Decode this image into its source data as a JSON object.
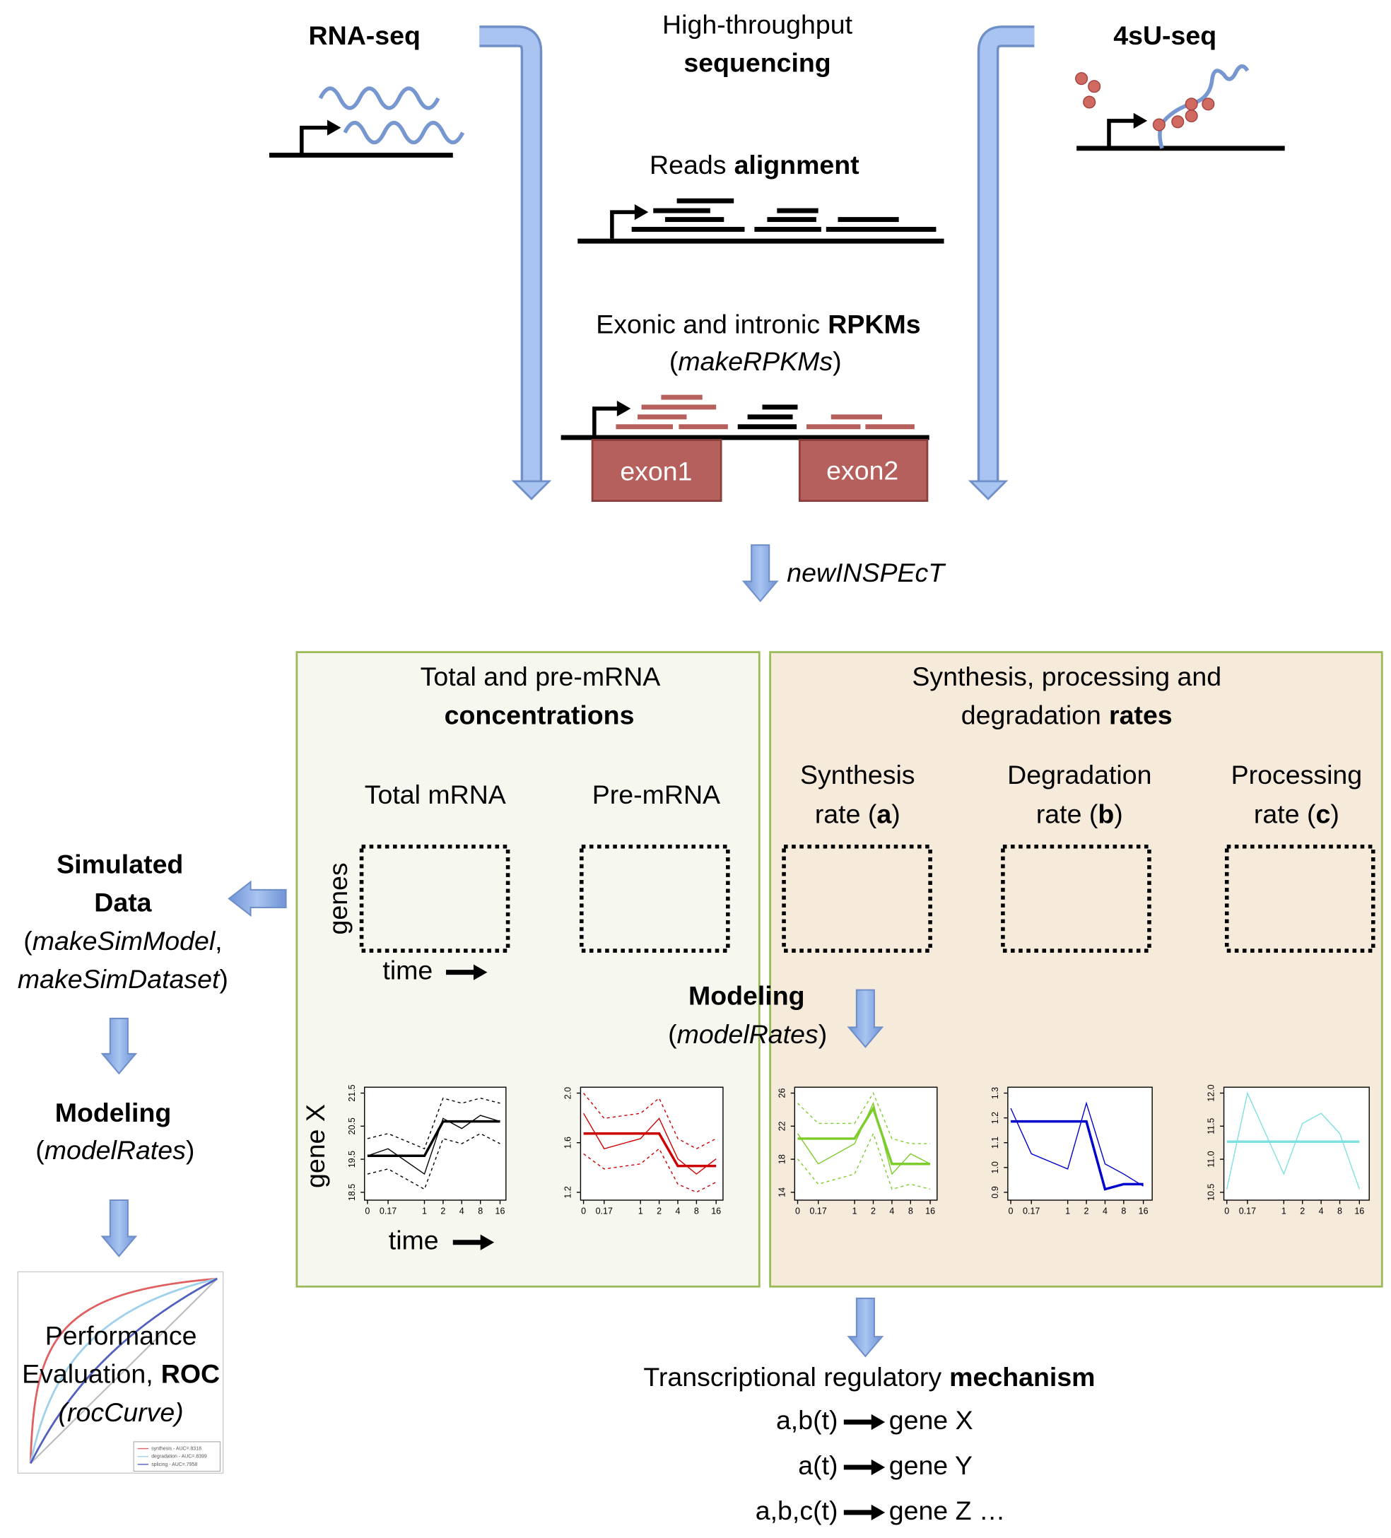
{
  "inputs": {
    "rna_seq": "RNA-seq",
    "sequencing": [
      "High-throughput",
      "sequencing"
    ],
    "su_seq": "4sU-seq"
  },
  "alignment": [
    "Reads",
    "alignment"
  ],
  "rpkm": {
    "line1": [
      "Exonic and intronic",
      "RPKMs"
    ],
    "line2": [
      "(",
      "makeRPKMs",
      ")"
    ]
  },
  "exons": [
    "exon1",
    "exon2"
  ],
  "step": "newINSPEcT",
  "concentrations": {
    "title": [
      "Total and pre-mRNA",
      "concentrations"
    ],
    "columns": [
      "Total mRNA",
      "Pre-mRNA"
    ],
    "y_label": "genes",
    "x_label": "time",
    "plot_y_label": "gene X",
    "plot_x_label": "time"
  },
  "rates": {
    "title": [
      "Synthesis, processing and",
      "degradation",
      "rates"
    ],
    "columns": [
      [
        "Synthesis",
        "rate (",
        "a",
        ")"
      ],
      [
        "Degradation",
        "rate (",
        "b",
        ")"
      ],
      [
        "Processing",
        "rate (",
        "c",
        ")"
      ]
    ]
  },
  "modeling": {
    "title": "Modeling",
    "fn": [
      "(",
      "modelRates",
      ")"
    ]
  },
  "simulation": {
    "title": [
      "Simulated",
      "Data"
    ],
    "fn": [
      "(",
      "makeSimModel",
      ",",
      "makeSimDataset",
      ")"
    ],
    "modeling": {
      "title": "Modeling",
      "fn": [
        "(",
        "modelRates",
        ")"
      ]
    },
    "roc": {
      "lines": [
        "Performance",
        "Evaluation,",
        "ROC",
        "(rocCurve)"
      ],
      "legend": [
        "synthesis - AUC=.8318",
        "degradation - AUC=.8399",
        "splicing - AUC=.7958"
      ]
    }
  },
  "plot_xticks": [
    "0",
    "0.17",
    "1",
    "2",
    "4",
    "8",
    "16"
  ],
  "plots": [
    {
      "yticks": [
        "18.5",
        "19.5",
        "20.5",
        "21.5"
      ]
    },
    {
      "yticks": [
        "1.2",
        "1.6",
        "2.0"
      ]
    },
    {
      "yticks": [
        "14",
        "18",
        "22",
        "26"
      ]
    },
    {
      "yticks": [
        "0.9",
        "1.0",
        "1.1",
        "1.2",
        "1.3"
      ]
    },
    {
      "yticks": [
        "10.5",
        "11.0",
        "11.5",
        "12.0"
      ]
    }
  ],
  "mechanism": {
    "title": [
      "Transcriptional regulatory",
      "mechanism"
    ],
    "rules": [
      [
        "a,b(t)",
        "gene X"
      ],
      [
        "a(t)",
        "gene Y"
      ],
      [
        "a,b,c(t)",
        "gene Z …"
      ]
    ]
  }
}
